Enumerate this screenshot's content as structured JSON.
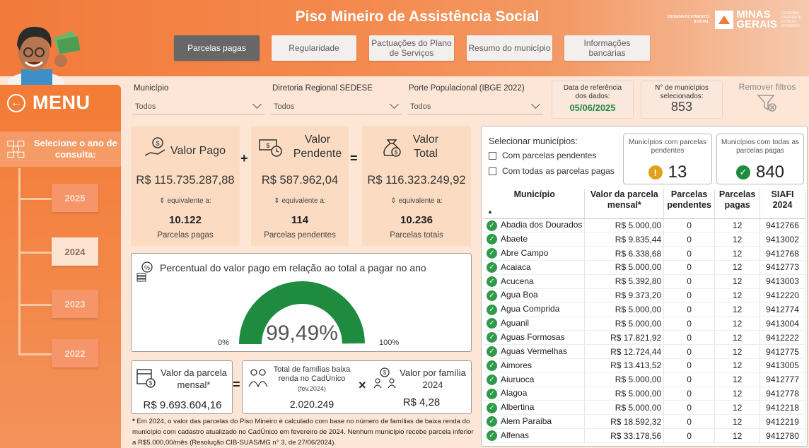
{
  "header": {
    "title": "Piso Mineiro de Assistência Social",
    "gov_small": [
      "DESENVOLVIMENTO",
      "SOCIAL"
    ],
    "gov_name": [
      "MINAS",
      "GERAIS"
    ],
    "gov_tag": [
      "GOVERNO",
      "DIFERENTE.",
      "ESTADO",
      "EFICIENTE."
    ]
  },
  "tabs": [
    {
      "label": "Parcelas pagas",
      "active": true
    },
    {
      "label": "Regularidade",
      "active": false
    },
    {
      "label": "Pactuações do Plano de Serviços",
      "active": false
    },
    {
      "label": "Resumo do município",
      "active": false
    },
    {
      "label": "Informações bancárias",
      "active": false
    }
  ],
  "sidebar": {
    "menu_label": "MENU",
    "select_year_label": "Selecione o ano de consulta:",
    "years": [
      {
        "label": "2025",
        "active": false
      },
      {
        "label": "2024",
        "active": true
      },
      {
        "label": "2023",
        "active": false
      },
      {
        "label": "2022",
        "active": false
      }
    ]
  },
  "filters": {
    "municipio": {
      "label": "Município",
      "value": "Todos"
    },
    "diretoria": {
      "label": "Diretoria Regional SEDESE",
      "value": "Todos"
    },
    "porte": {
      "label": "Porte Populacional (IBGE 2022)",
      "value": "Todos"
    }
  },
  "info": {
    "ref_date_label": "Data de referência dos dados:",
    "ref_date_value": "05/06/2025",
    "num_mun_label": "N° de municípios selecionados:",
    "num_mun_value": "853",
    "remove_filters": "Remover filtros"
  },
  "kpis": {
    "pago": {
      "title": "Valor Pago",
      "value": "R$ 115.735.287,88",
      "eq": "equivalente a:",
      "count": "10.122",
      "foot": "Parcelas pagas"
    },
    "pendente": {
      "title": "Valor Pendente",
      "value": "R$ 587.962,04",
      "eq": "equivalente a:",
      "count": "114",
      "foot": "Parcelas pendentes"
    },
    "total": {
      "title": "Valor Total",
      "value": "R$ 116.323.249,92",
      "eq": "equivalente a:",
      "count": "10.236",
      "foot": "Parcelas totais"
    },
    "plus": "+",
    "equals": "="
  },
  "gauge": {
    "title": "Percentual do valor pago em relação ao total a pagar no ano",
    "value_label": "99,49%",
    "value": 0.9949,
    "min_label": "0%",
    "max_label": "100%",
    "color": "#1e8b3e"
  },
  "calc": {
    "parcela_label": "Valor da parcela mensal*",
    "parcela_value": "R$ 9.693.604,16",
    "equals": "=",
    "familias_label": "Total de famílias baixa renda no CadÚnico",
    "familias_sub": "(fev.2024)",
    "familias_value": "2.020.249",
    "times": "×",
    "por_familia_label": "Valor por família 2024",
    "por_familia_value": "R$ 4,28"
  },
  "footnote": "Em 2024, o valor das parcelas do Piso Mineiro é calculado com base no número de famílias de baixa renda do município com cadastro atualizado no CadÚnico em fevereiro de 2024. Nenhum município recebe parcela inferior a R$5.000,00/mês (Resolução CIB-SUAS/MG n° 3, de 27/06/2024).",
  "footnote_mark": "*",
  "selection": {
    "title": "Selecionar municípios:",
    "opt_pendentes": "Com parcelas pendentes",
    "opt_todas": "Com todas as parcelas pagas",
    "card_pend_label": "Municípios com parcelas pendentes",
    "card_pend_value": "13",
    "card_pagas_label": "Municípios com todas as parcelas pagas",
    "card_pagas_value": "840"
  },
  "table": {
    "headers": [
      "Município",
      "Valor da parcela mensal*",
      "Parcelas pendentes",
      "Parcelas pagas",
      "SIAFI 2024"
    ],
    "rows": [
      [
        "Abadia dos Dourados",
        "R$ 5.000,00",
        "0",
        "12",
        "9412766"
      ],
      [
        "Abaete",
        "R$ 9.835,44",
        "0",
        "12",
        "9413002"
      ],
      [
        "Abre Campo",
        "R$ 6.338,68",
        "0",
        "12",
        "9412768"
      ],
      [
        "Acaiaca",
        "R$ 5.000,00",
        "0",
        "12",
        "9412773"
      ],
      [
        "Acucena",
        "R$ 5.392,80",
        "0",
        "12",
        "9413003"
      ],
      [
        "Agua Boa",
        "R$ 9.373,20",
        "0",
        "12",
        "9412220"
      ],
      [
        "Agua Comprida",
        "R$ 5.000,00",
        "0",
        "12",
        "9412774"
      ],
      [
        "Aguanil",
        "R$ 5.000,00",
        "0",
        "12",
        "9413004"
      ],
      [
        "Aguas Formosas",
        "R$ 17.821,92",
        "0",
        "12",
        "9412222"
      ],
      [
        "Aguas Vermelhas",
        "R$ 12.724,44",
        "0",
        "12",
        "9412775"
      ],
      [
        "Aimores",
        "R$ 13.413,52",
        "0",
        "12",
        "9413005"
      ],
      [
        "Aiuruoca",
        "R$ 5.000,00",
        "0",
        "12",
        "9412777"
      ],
      [
        "Alagoa",
        "R$ 5.000,00",
        "0",
        "12",
        "9412778"
      ],
      [
        "Albertina",
        "R$ 5.000,00",
        "0",
        "12",
        "9412218"
      ],
      [
        "Alem Paraiba",
        "R$ 18.592,32",
        "0",
        "12",
        "9412219"
      ],
      [
        "Alfenas",
        "R$ 33.178,56",
        "0",
        "12",
        "9412780"
      ]
    ]
  }
}
